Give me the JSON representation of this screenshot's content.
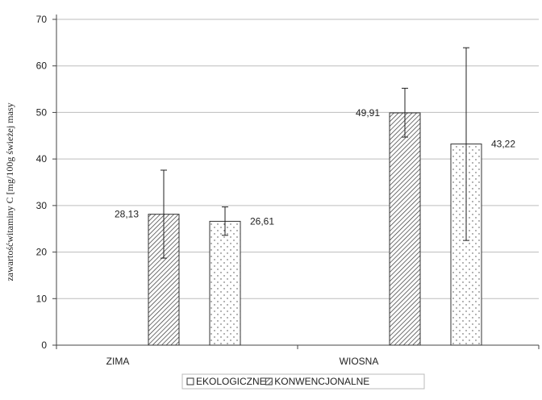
{
  "chart_data": {
    "type": "bar",
    "categories": [
      "ZIMA",
      "WIOSNA"
    ],
    "series": [
      {
        "name": "EKOLOGICZNE",
        "values": [
          28.13,
          49.91
        ],
        "labels": [
          "28,13",
          "49,91"
        ],
        "error_low": [
          18.7,
          44.7
        ],
        "error_high": [
          37.6,
          55.2
        ],
        "pattern": "diagonal-hatch"
      },
      {
        "name": "KONWENCJONALNE",
        "values": [
          26.61,
          43.22
        ],
        "labels": [
          "26,61",
          "43,22"
        ],
        "error_low": [
          23.6,
          22.5
        ],
        "error_high": [
          29.7,
          63.9
        ],
        "pattern": "dots"
      }
    ],
    "ylabel": "zawartośćwitaminy C [mg/100g świeżej masy",
    "xlabel": "",
    "ylim": [
      0,
      70
    ],
    "yticks": [
      0,
      10,
      20,
      30,
      40,
      50,
      60,
      70
    ],
    "grid": true,
    "legend_position": "bottom"
  }
}
